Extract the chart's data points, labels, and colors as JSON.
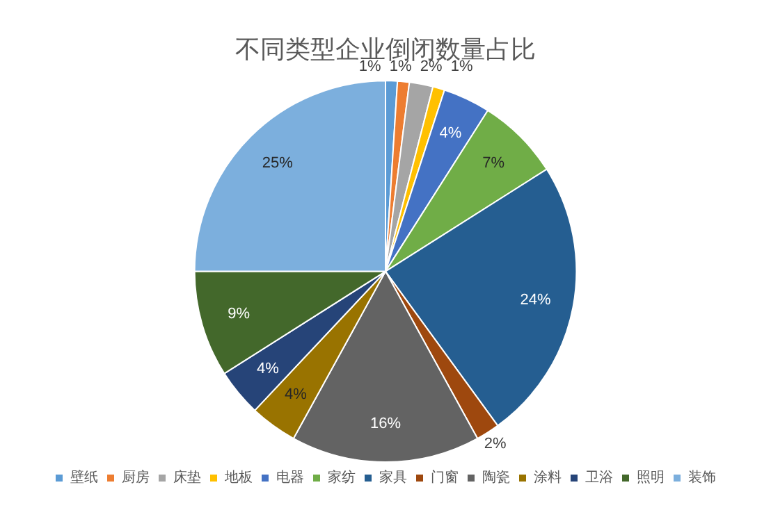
{
  "chart_data": {
    "type": "pie",
    "title": "不同类型企业倒闭数量占比",
    "categories": [
      "壁纸",
      "厨房",
      "床垫",
      "地板",
      "电器",
      "家纺",
      "家具",
      "门窗",
      "陶瓷",
      "涂料",
      "卫浴",
      "照明",
      "装饰"
    ],
    "values": [
      1,
      1,
      2,
      1,
      4,
      7,
      24,
      2,
      16,
      4,
      4,
      9,
      25
    ],
    "colors": [
      "#5b9bd5",
      "#ed7d31",
      "#a5a5a5",
      "#ffc000",
      "#4472c4",
      "#70ad47",
      "#255e91",
      "#9e480e",
      "#636363",
      "#997300",
      "#264478",
      "#43682b",
      "#7cafdd"
    ],
    "value_labels": [
      "1%",
      "1%",
      "2%",
      "1%",
      "4%",
      "7%",
      "24%",
      "2%",
      "16%",
      "4%",
      "4%",
      "9%",
      "25%"
    ],
    "legend": "bottom"
  }
}
